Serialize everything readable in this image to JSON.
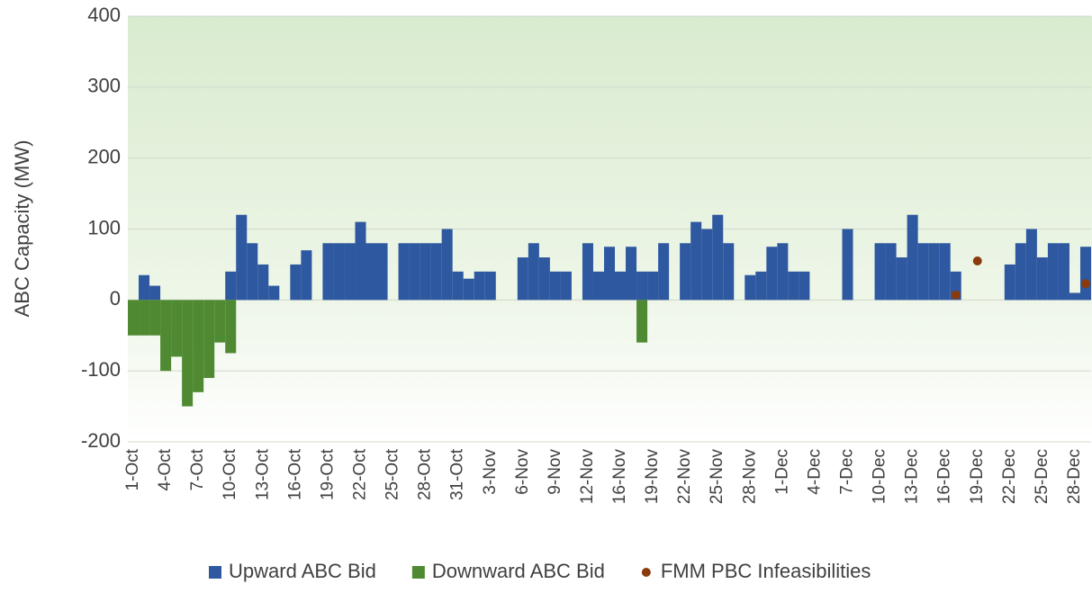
{
  "chart_data": {
    "type": "bar",
    "y_label": "ABC Capacity (MW)",
    "categories": [
      "1-Oct",
      null,
      null,
      "4-Oct",
      null,
      null,
      "7-Oct",
      null,
      null,
      "10-Oct",
      null,
      null,
      "13-Oct",
      null,
      null,
      "16-Oct",
      null,
      null,
      "19-Oct",
      null,
      null,
      "22-Oct",
      null,
      null,
      "25-Oct",
      null,
      null,
      "28-Oct",
      null,
      null,
      "31-Oct",
      null,
      null,
      "3-Nov",
      null,
      null,
      "6-Nov",
      null,
      null,
      "9-Nov",
      null,
      null,
      "12-Nov",
      null,
      null,
      "16-Nov",
      null,
      null,
      "19-Nov",
      null,
      null,
      "22-Nov",
      null,
      null,
      "25-Nov",
      null,
      null,
      "28-Nov",
      null,
      null,
      "1-Dec",
      null,
      null,
      "4-Dec",
      null,
      null,
      "7-Dec",
      null,
      null,
      "10-Dec",
      null,
      null,
      "13-Dec",
      null,
      null,
      "16-Dec",
      null,
      null,
      "19-Dec",
      null,
      null,
      "22-Dec",
      null,
      null,
      "25-Dec",
      null,
      null,
      "28-Dec",
      null
    ],
    "series": [
      {
        "name": "Upward ABC Bid",
        "color": "#2e58a0",
        "kind": "bar",
        "values": [
          0,
          35,
          20,
          0,
          0,
          0,
          0,
          0,
          0,
          40,
          120,
          80,
          50,
          20,
          0,
          50,
          70,
          0,
          80,
          80,
          80,
          110,
          80,
          80,
          0,
          80,
          80,
          80,
          80,
          100,
          40,
          30,
          40,
          40,
          0,
          0,
          60,
          80,
          60,
          40,
          40,
          0,
          80,
          40,
          75,
          40,
          75,
          40,
          40,
          80,
          0,
          80,
          110,
          100,
          120,
          80,
          0,
          35,
          40,
          75,
          80,
          40,
          40,
          0,
          0,
          0,
          100,
          0,
          0,
          80,
          80,
          60,
          120,
          80,
          80,
          80,
          40,
          0,
          0,
          0,
          0,
          50,
          80,
          100,
          60,
          80,
          80,
          10,
          75
        ]
      },
      {
        "name": "Downward ABC Bid",
        "color": "#4f8a32",
        "kind": "bar",
        "values": [
          -50,
          -50,
          -50,
          -100,
          -80,
          -150,
          -130,
          -110,
          -60,
          -75,
          0,
          0,
          0,
          0,
          0,
          0,
          0,
          0,
          0,
          0,
          0,
          0,
          0,
          0,
          0,
          0,
          0,
          0,
          0,
          0,
          0,
          0,
          0,
          0,
          0,
          0,
          0,
          0,
          0,
          0,
          0,
          0,
          0,
          0,
          0,
          0,
          0,
          -60,
          0,
          0,
          0,
          0,
          0,
          0,
          0,
          0,
          0,
          0,
          0,
          0,
          0,
          0,
          0,
          0,
          0,
          0,
          0,
          0,
          0,
          0,
          0,
          0,
          0,
          0,
          0,
          0,
          0,
          0,
          0,
          0,
          0,
          0,
          0,
          0,
          0,
          0,
          0,
          0,
          0
        ]
      },
      {
        "name": "FMM PBC Infeasibilities",
        "color": "#8b3a0e",
        "kind": "dot",
        "values": [
          null,
          null,
          null,
          null,
          null,
          null,
          null,
          null,
          null,
          null,
          null,
          null,
          null,
          null,
          null,
          null,
          null,
          null,
          null,
          null,
          null,
          null,
          null,
          null,
          null,
          null,
          null,
          null,
          null,
          null,
          null,
          null,
          null,
          null,
          null,
          null,
          null,
          null,
          null,
          null,
          null,
          null,
          null,
          null,
          null,
          null,
          null,
          null,
          null,
          null,
          null,
          null,
          null,
          null,
          null,
          null,
          null,
          null,
          null,
          null,
          null,
          null,
          null,
          null,
          null,
          null,
          null,
          null,
          null,
          null,
          null,
          null,
          null,
          null,
          null,
          null,
          7,
          null,
          55,
          null,
          null,
          null,
          null,
          null,
          null,
          null,
          null,
          null,
          23
        ]
      }
    ],
    "ylim": [
      -200,
      400
    ],
    "yticks": [
      -200,
      -100,
      0,
      100,
      200,
      300,
      400
    ],
    "grid": true
  }
}
